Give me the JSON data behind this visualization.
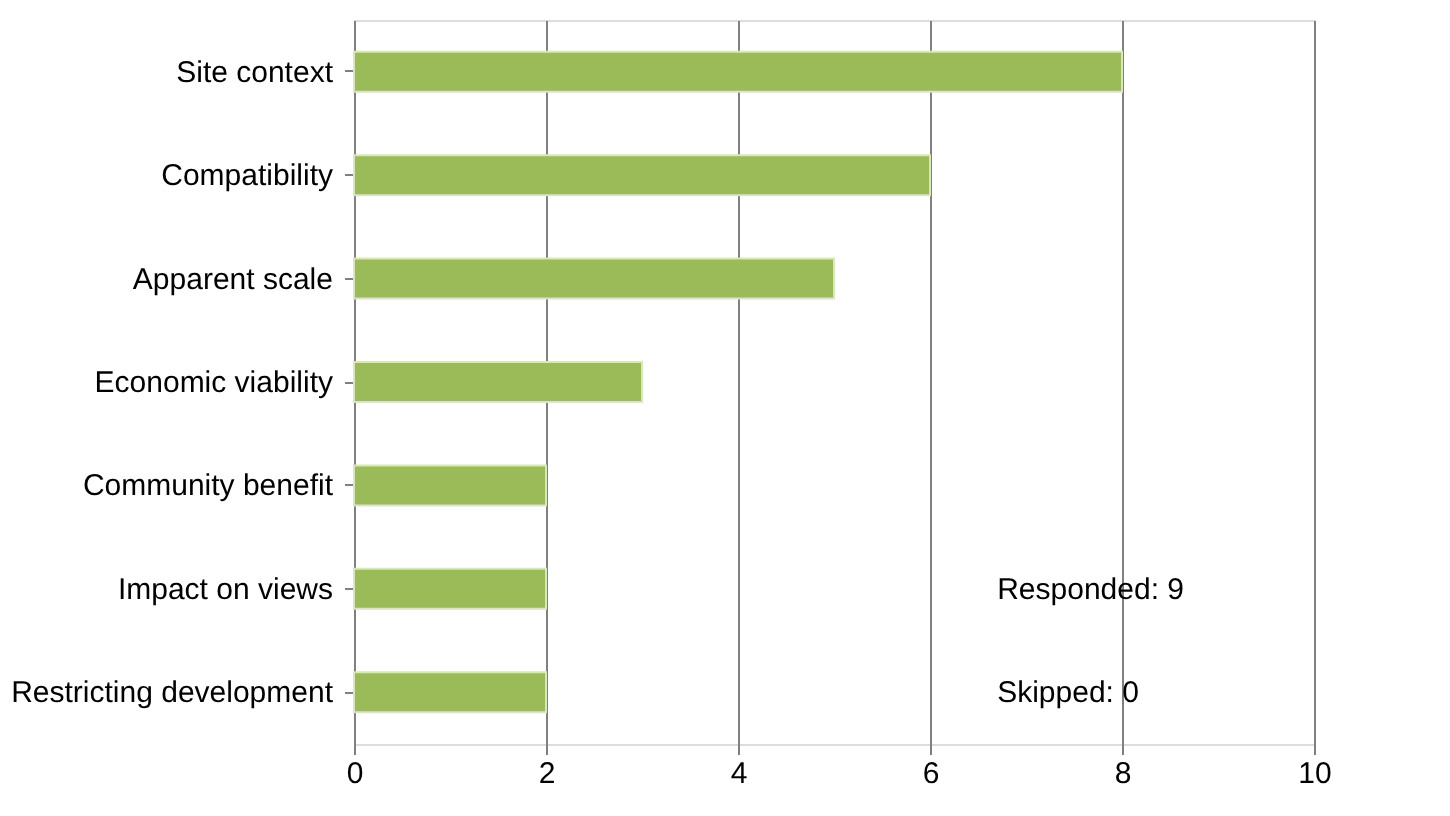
{
  "chart_data": {
    "type": "bar",
    "orientation": "horizontal",
    "categories": [
      "Site context",
      "Compatibility",
      "Apparent scale",
      "Economic viability",
      "Community benefit",
      "Impact on views",
      "Restricting development"
    ],
    "values": [
      8,
      6,
      5,
      3,
      2,
      2,
      2
    ],
    "color": "#9bbb59",
    "xlim": [
      0,
      10
    ],
    "xticks": [
      0,
      2,
      4,
      6,
      8,
      10
    ],
    "grid": "x",
    "annotations": [
      "Responded: 9",
      "Skipped: 0"
    ]
  }
}
